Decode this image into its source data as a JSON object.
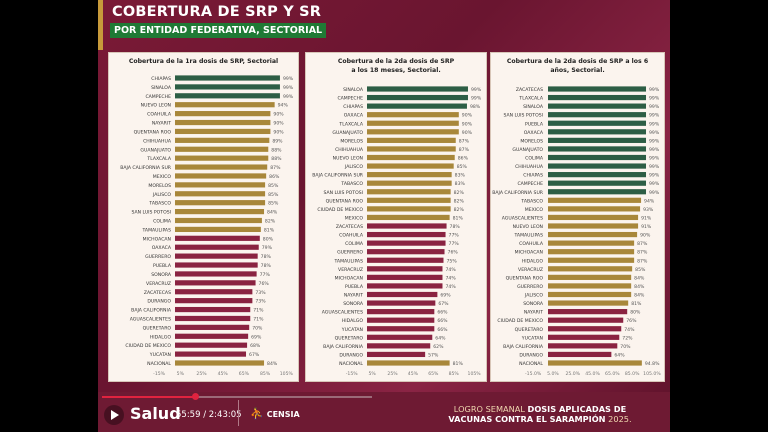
{
  "header": {
    "title": "COBERTURA DE SRP Y SR",
    "subtitle": "POR ENTIDAD FEDERATIVA, SECTORIAL"
  },
  "colors": {
    "high": "#2d5e45",
    "mid": "#a8873a",
    "low": "#8a2341",
    "background": "#6e1a33"
  },
  "color_rule": {
    "high_min": 95,
    "mid_min": 81
  },
  "chart_data": [
    {
      "type": "bar",
      "orientation": "horizontal",
      "title": "Cobertura de la 1ra dosis de SRP, Sectorial",
      "xlim": [
        -15,
        105
      ],
      "ticks": [
        "-15%",
        "5%",
        "25%",
        "45%",
        "65%",
        "85%",
        "105%"
      ],
      "categories": [
        "CHIAPAS",
        "SINALOA",
        "CAMPECHE",
        "NUEVO LEON",
        "COAHUILA",
        "NAYARIT",
        "QUENTANA ROO",
        "CHIHUAHUA",
        "GUANAJUATO",
        "TLAXCALA",
        "BAJA CALIFORNIA SUR",
        "MEXICO",
        "MORELOS",
        "JALISCO",
        "TABASCO",
        "SAN LUIS POTOSI",
        "COLIMA",
        "TAMAULIPAS",
        "MICHOACAN",
        "OAXACA",
        "GUERRERO",
        "PUEBLA",
        "SONORA",
        "VERACRUZ",
        "ZACATECAS",
        "DURANGO",
        "BAJA CALIFORNIA",
        "AGUASCALIENTES",
        "QUERETARO",
        "HIDALGO",
        "CIUDAD DE MEXICO",
        "YUCATAN",
        "NACIONAL"
      ],
      "values": [
        99,
        99,
        99,
        94,
        90,
        90,
        90,
        89,
        88,
        88,
        87,
        86,
        85,
        85,
        85,
        84,
        82,
        81,
        80,
        79,
        78,
        78,
        77,
        76,
        73,
        73,
        71,
        71,
        70,
        69,
        68,
        67,
        84
      ],
      "labels": [
        "99%",
        "99%",
        "99%",
        "94%",
        "90%",
        "90%",
        "90%",
        "89%",
        "88%",
        "88%",
        "87%",
        "86%",
        "85%",
        "85%",
        "85%",
        "84%",
        "82%",
        "81%",
        "80%",
        "79%",
        "78%",
        "78%",
        "77%",
        "76%",
        "73%",
        "73%",
        "71%",
        "71%",
        "70%",
        "69%",
        "68%",
        "67%",
        "84%"
      ]
    },
    {
      "type": "bar",
      "orientation": "horizontal",
      "title": "Cobertura de la 2da dosis de SRP a los 18 meses, Sectorial.",
      "xlim": [
        -15,
        105
      ],
      "ticks": [
        "-15%",
        "5%",
        "25%",
        "45%",
        "65%",
        "85%",
        "105%"
      ],
      "categories": [
        "SINALOA",
        "CAMPECHE",
        "CHIAPAS",
        "OAXACA",
        "TLAXCALA",
        "GUANAJUATO",
        "MORELOS",
        "CHIHUAHUA",
        "NUEVO LEON",
        "JALISCO",
        "BAJA CALIFORNIA SUR",
        "TABASCO",
        "SAN LUIS POTOSI",
        "QUENTANA ROO",
        "CIUDAD DE MEXICO",
        "MEXICO",
        "ZACATECAS",
        "COAHUILA",
        "COLIMA",
        "GUERRERO",
        "TAMAULIPAS",
        "VERACRUZ",
        "MICHOACAN",
        "PUEBLA",
        "NAYARIT",
        "SONORA",
        "AGUASCALIENTES",
        "HIDALGO",
        "YUCATAN",
        "QUERETARO",
        "BAJA CALIFORNIA",
        "DURANGO",
        "NACIONAL"
      ],
      "values": [
        99,
        99,
        98,
        90,
        90,
        90,
        87,
        87,
        86,
        85,
        83,
        83,
        82,
        82,
        82,
        81,
        78,
        77,
        77,
        76,
        75,
        74,
        74,
        74,
        69,
        67,
        66,
        66,
        66,
        64,
        62,
        57,
        81
      ],
      "labels": [
        "99%",
        "99%",
        "98%",
        "90%",
        "90%",
        "90%",
        "87%",
        "87%",
        "86%",
        "85%",
        "83%",
        "83%",
        "82%",
        "82%",
        "82%",
        "81%",
        "78%",
        "77%",
        "77%",
        "76%",
        "75%",
        "74%",
        "74%",
        "74%",
        "69%",
        "67%",
        "66%",
        "66%",
        "66%",
        "64%",
        "62%",
        "57%",
        "81%"
      ]
    },
    {
      "type": "bar",
      "orientation": "horizontal",
      "title": "Cobertura de la 2da dosis de SRP a los 6 años, Sectorial.",
      "xlim": [
        -15,
        105
      ],
      "ticks": [
        "-15.0%",
        "5.0%",
        "25.0%",
        "45.0%",
        "65.0%",
        "85.0%",
        "105.0%"
      ],
      "categories": [
        "ZACATECAS",
        "TLAXCALA",
        "SINALOA",
        "SAN LUIS POTOSI",
        "PUEBLA",
        "OAXACA",
        "MORELOS",
        "GUANAJUATO",
        "COLIMA",
        "CHIHUAHUA",
        "CHIAPAS",
        "CAMPECHE",
        "BAJA CALIFORNIA SUR",
        "TABASCO",
        "MEXICO",
        "AGUASCALIENTES",
        "NUEVO LEON",
        "TAMAULIPAS",
        "COAHUILA",
        "MICHOACAN",
        "HIDALGO",
        "VERACRUZ",
        "QUENTANA ROO",
        "GUERRERO",
        "JALISCO",
        "SONORA",
        "NAYARIT",
        "CIUDAD DE MEXICO",
        "QUERETARO",
        "YUCATAN",
        "BAJA CALIFORNIA",
        "DURANGO",
        "NACIONAL"
      ],
      "values": [
        99,
        99,
        99,
        99,
        99,
        99,
        99,
        99,
        99,
        99,
        99,
        99,
        99,
        94,
        93,
        91,
        91,
        90,
        87,
        87,
        87,
        85,
        84,
        84,
        84,
        81,
        80,
        76,
        74,
        72,
        70,
        64,
        94.8
      ],
      "labels": [
        "99%",
        "99%",
        "99%",
        "99%",
        "99%",
        "99%",
        "99%",
        "99%",
        "99%",
        "99%",
        "99%",
        "99%",
        "99%",
        "94%",
        "93%",
        "91%",
        "91%",
        "90%",
        "87%",
        "87%",
        "87%",
        "85%",
        "84%",
        "84%",
        "84%",
        "81%",
        "80%",
        "76%",
        "74%",
        "72%",
        "70%",
        "64%",
        "94.8%"
      ]
    }
  ],
  "player": {
    "current_time": "55:59",
    "duration": "2:43:05",
    "time_label": "55:59 / 2:43:05",
    "progress": 0.343,
    "brand": "Salud",
    "partner": "CENSIA"
  },
  "footer": {
    "line1_plain": "LOGRO SEMANAL ",
    "line1_bold": "DOSIS APLICADAS DE",
    "line2_bold": "VACUNAS CONTRA EL SARAMPIÓN",
    "line2_plain": " 2025."
  }
}
